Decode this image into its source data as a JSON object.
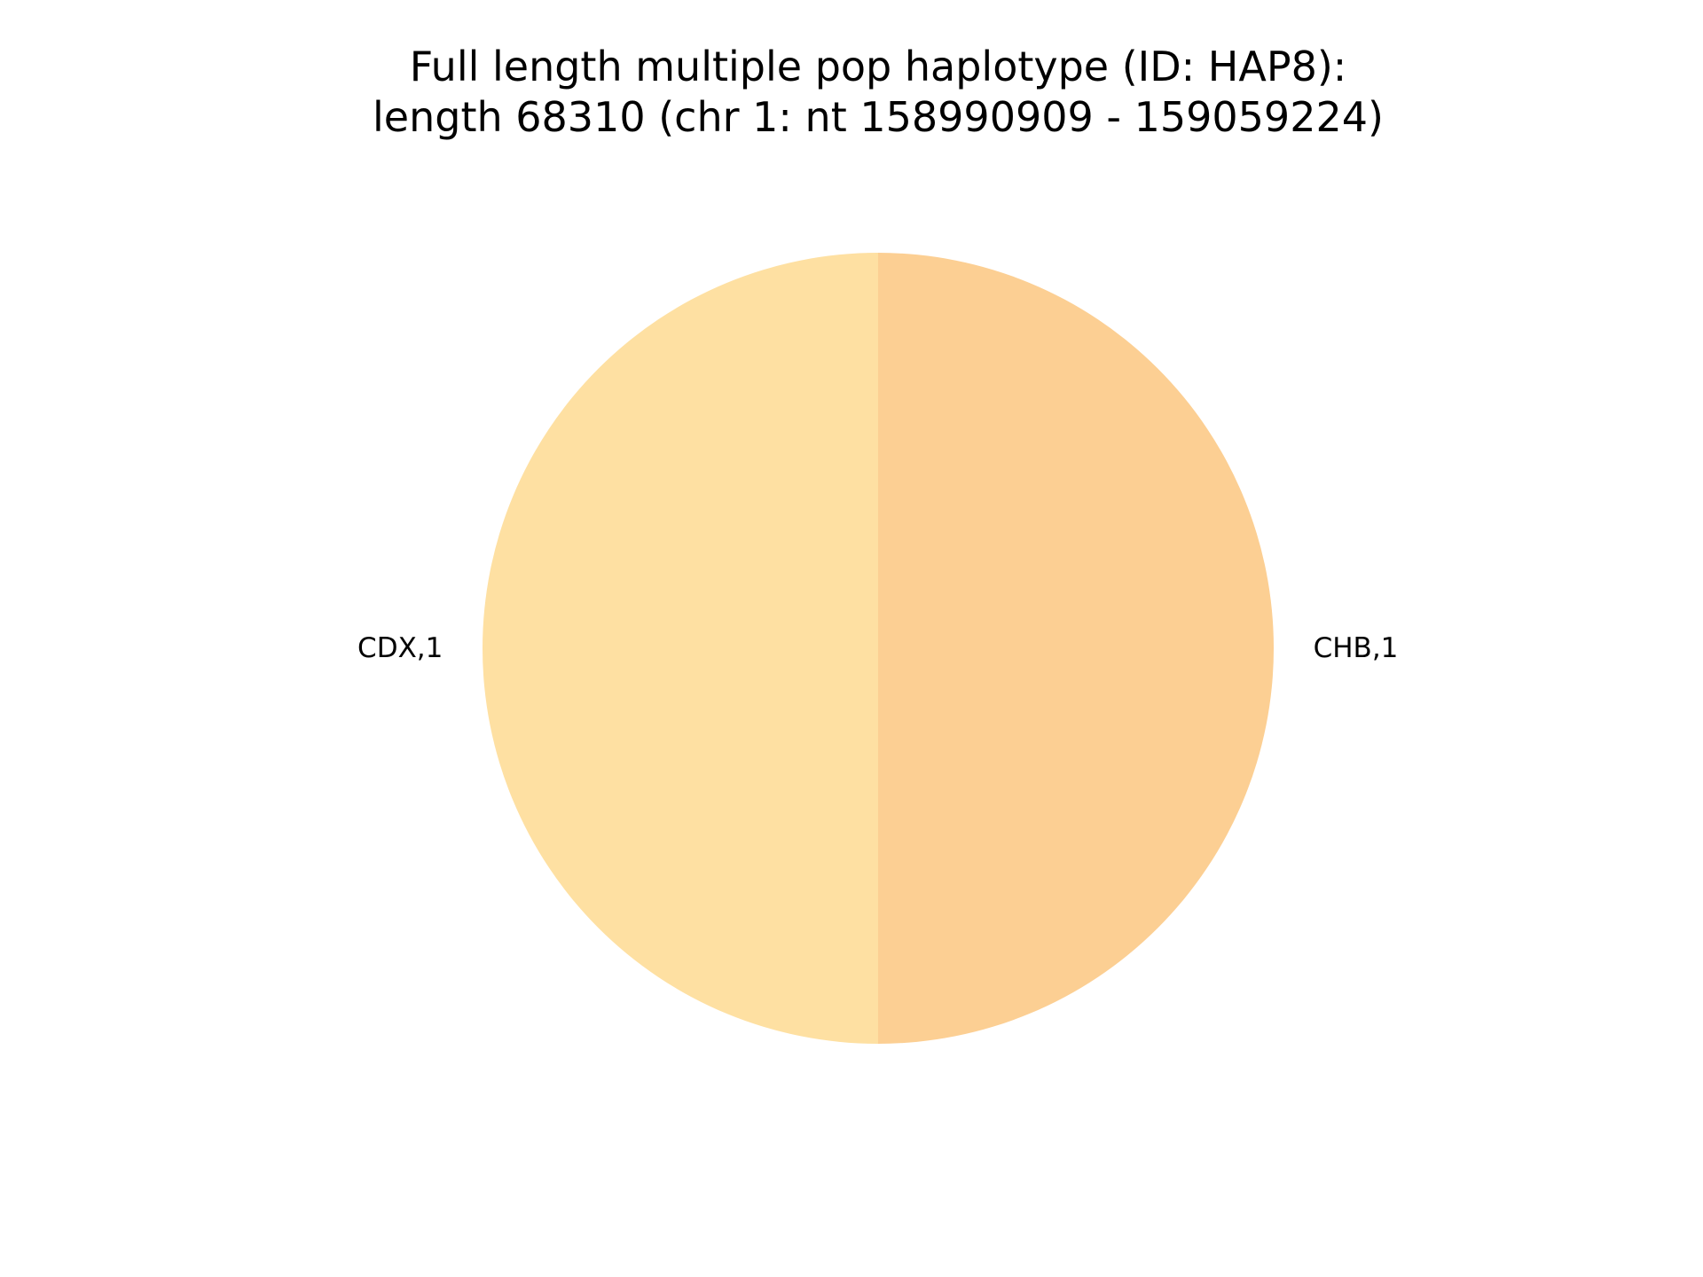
{
  "chart_data": {
    "type": "pie",
    "title_lines": [
      "Full length multiple pop haplotype (ID: HAP8):",
      "length 68310 (chr 1: nt 158990909 - 159059224)"
    ],
    "slices": [
      {
        "label": "CDX,1",
        "value": 1,
        "color": "#fee0a2"
      },
      {
        "label": "CHB,1",
        "value": 1,
        "color": "#fccf93"
      }
    ],
    "start_angle_deg": 90,
    "direction": "counterclockwise",
    "legend": "none"
  }
}
